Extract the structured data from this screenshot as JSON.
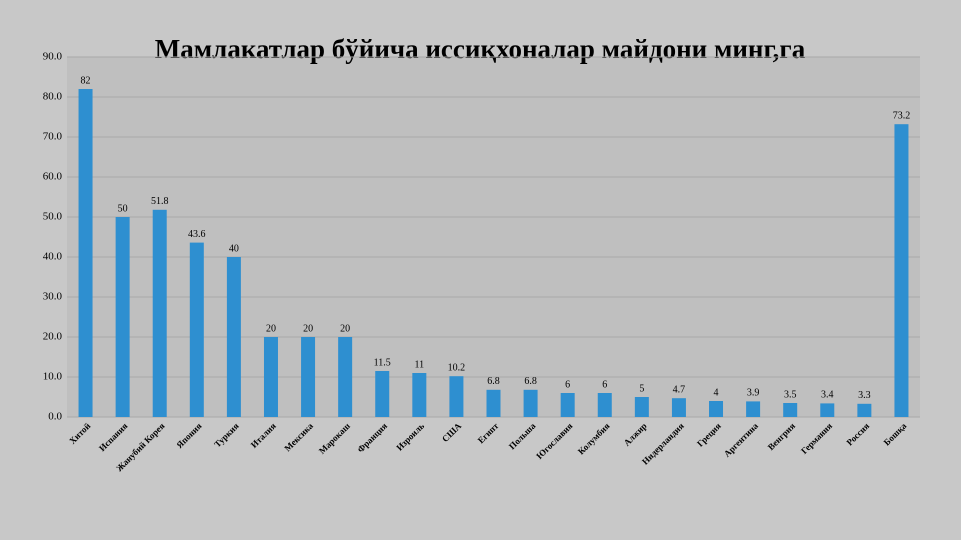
{
  "chart_data": {
    "type": "bar",
    "title": "Мамлакатлар бўйича иссиқхоналар майдони минг,га",
    "categories": [
      "Хитой",
      "Испания",
      "Жанубий Корея",
      "Япония",
      "Туркия",
      "Италия",
      "Мексика",
      "Марокаш",
      "Франция",
      "Изроиль",
      "США",
      "Египт",
      "Польша",
      "Югославия",
      "Колумбия",
      "Алжир",
      "Нидерландия",
      "Греция",
      "Аргентина",
      "Венгрия",
      "Германия",
      "Россия",
      "Бошқа"
    ],
    "values": [
      82,
      50,
      51.8,
      43.6,
      40,
      20,
      20,
      20,
      11.5,
      11,
      10.2,
      6.8,
      6.8,
      6,
      6,
      5,
      4.7,
      4,
      3.9,
      3.5,
      3.4,
      3.3,
      73.2
    ],
    "color": "#2e8fd0",
    "ylim": [
      0,
      90
    ],
    "yticks": [
      {
        "value": 0,
        "label": "0.0"
      },
      {
        "value": 10,
        "label": "10.0"
      },
      {
        "value": 20,
        "label": "20.0"
      },
      {
        "value": 30,
        "label": "30.0"
      },
      {
        "value": 40,
        "label": "40.0"
      },
      {
        "value": 50,
        "label": "50.0"
      },
      {
        "value": 60,
        "label": "60.0"
      },
      {
        "value": 70,
        "label": "70.0"
      },
      {
        "value": 80,
        "label": "80.0"
      },
      {
        "value": 90,
        "label": "90.0"
      }
    ],
    "grid": true
  }
}
